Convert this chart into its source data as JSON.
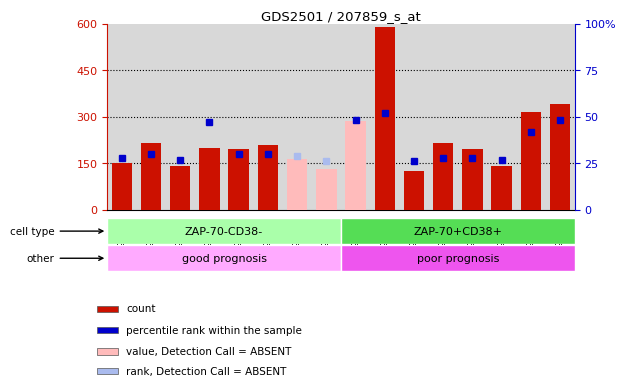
{
  "title": "GDS2501 / 207859_s_at",
  "samples": [
    "GSM99339",
    "GSM99340",
    "GSM99341",
    "GSM99342",
    "GSM99343",
    "GSM99344",
    "GSM99345",
    "GSM99346",
    "GSM99347",
    "GSM99348",
    "GSM99349",
    "GSM99350",
    "GSM99351",
    "GSM99352",
    "GSM99353",
    "GSM99354"
  ],
  "values": [
    150,
    215,
    140,
    200,
    195,
    210,
    null,
    null,
    null,
    590,
    125,
    215,
    195,
    140,
    315,
    340
  ],
  "values_absent": [
    null,
    null,
    null,
    null,
    null,
    null,
    165,
    130,
    285,
    null,
    null,
    null,
    null,
    null,
    null,
    null
  ],
  "ranks": [
    28,
    30,
    27,
    47,
    30,
    30,
    null,
    null,
    48,
    52,
    26,
    28,
    28,
    27,
    42,
    48
  ],
  "ranks_absent": [
    null,
    null,
    null,
    null,
    null,
    null,
    29,
    26,
    null,
    null,
    null,
    null,
    null,
    null,
    null,
    null
  ],
  "cell_type_groups": [
    {
      "label": "ZAP-70-CD38-",
      "start": 0,
      "end": 8,
      "color": "#aaffaa"
    },
    {
      "label": "ZAP-70+CD38+",
      "start": 8,
      "end": 16,
      "color": "#55dd55"
    }
  ],
  "other_groups": [
    {
      "label": "good prognosis",
      "start": 0,
      "end": 8,
      "color": "#ffaaff"
    },
    {
      "label": "poor prognosis",
      "start": 8,
      "end": 16,
      "color": "#ee55ee"
    }
  ],
  "ylim_left": [
    0,
    600
  ],
  "ylim_right": [
    0,
    100
  ],
  "yticks_left": [
    0,
    150,
    300,
    450,
    600
  ],
  "yticks_right": [
    0,
    25,
    50,
    75,
    100
  ],
  "bar_color": "#cc1100",
  "bar_absent_color": "#ffbbbb",
  "dot_color": "#0000cc",
  "dot_absent_color": "#aabbee",
  "col_bg_color": "#d8d8d8",
  "legend_items": [
    {
      "color": "#cc1100",
      "label": "count"
    },
    {
      "color": "#0000cc",
      "label": "percentile rank within the sample"
    },
    {
      "color": "#ffbbbb",
      "label": "value, Detection Call = ABSENT"
    },
    {
      "color": "#aabbee",
      "label": "rank, Detection Call = ABSENT"
    }
  ]
}
